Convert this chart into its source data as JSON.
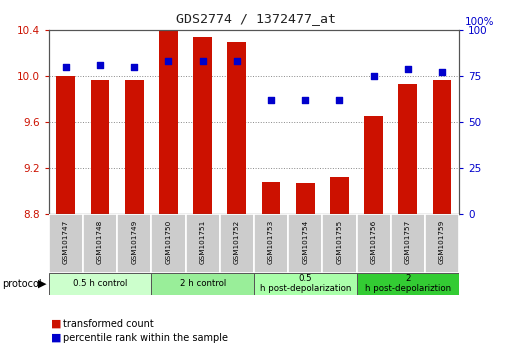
{
  "title": "GDS2774 / 1372477_at",
  "samples": [
    "GSM101747",
    "GSM101748",
    "GSM101749",
    "GSM101750",
    "GSM101751",
    "GSM101752",
    "GSM101753",
    "GSM101754",
    "GSM101755",
    "GSM101756",
    "GSM101757",
    "GSM101759"
  ],
  "bar_values": [
    10.0,
    9.97,
    9.97,
    10.39,
    10.34,
    10.3,
    9.08,
    9.07,
    9.12,
    9.65,
    9.93,
    9.97
  ],
  "bar_bottom": 8.8,
  "dot_values": [
    80,
    81,
    80,
    83,
    83,
    83,
    62,
    62,
    62,
    75,
    79,
    77
  ],
  "ylim_left": [
    8.8,
    10.4
  ],
  "ylim_right": [
    0,
    100
  ],
  "yticks_left": [
    8.8,
    9.2,
    9.6,
    10.0,
    10.4
  ],
  "yticks_right": [
    0,
    25,
    50,
    75,
    100
  ],
  "bar_color": "#cc1100",
  "dot_color": "#0000cc",
  "grid_color": "#888888",
  "bg_color": "#ffffff",
  "protocol_groups": [
    {
      "label": "0.5 h control",
      "start": 0,
      "end": 3,
      "color": "#ccffcc"
    },
    {
      "label": "2 h control",
      "start": 3,
      "end": 6,
      "color": "#99ee99"
    },
    {
      "label": "0.5 h post-depolarization",
      "start": 6,
      "end": 9,
      "color": "#aaffaa"
    },
    {
      "label": "2 h post-depolariztion",
      "start": 9,
      "end": 12,
      "color": "#33cc33"
    }
  ],
  "legend_items": [
    {
      "label": "transformed count",
      "color": "#cc1100"
    },
    {
      "label": "percentile rank within the sample",
      "color": "#0000cc"
    }
  ],
  "left_color": "#cc1100",
  "right_color": "#0000cc"
}
